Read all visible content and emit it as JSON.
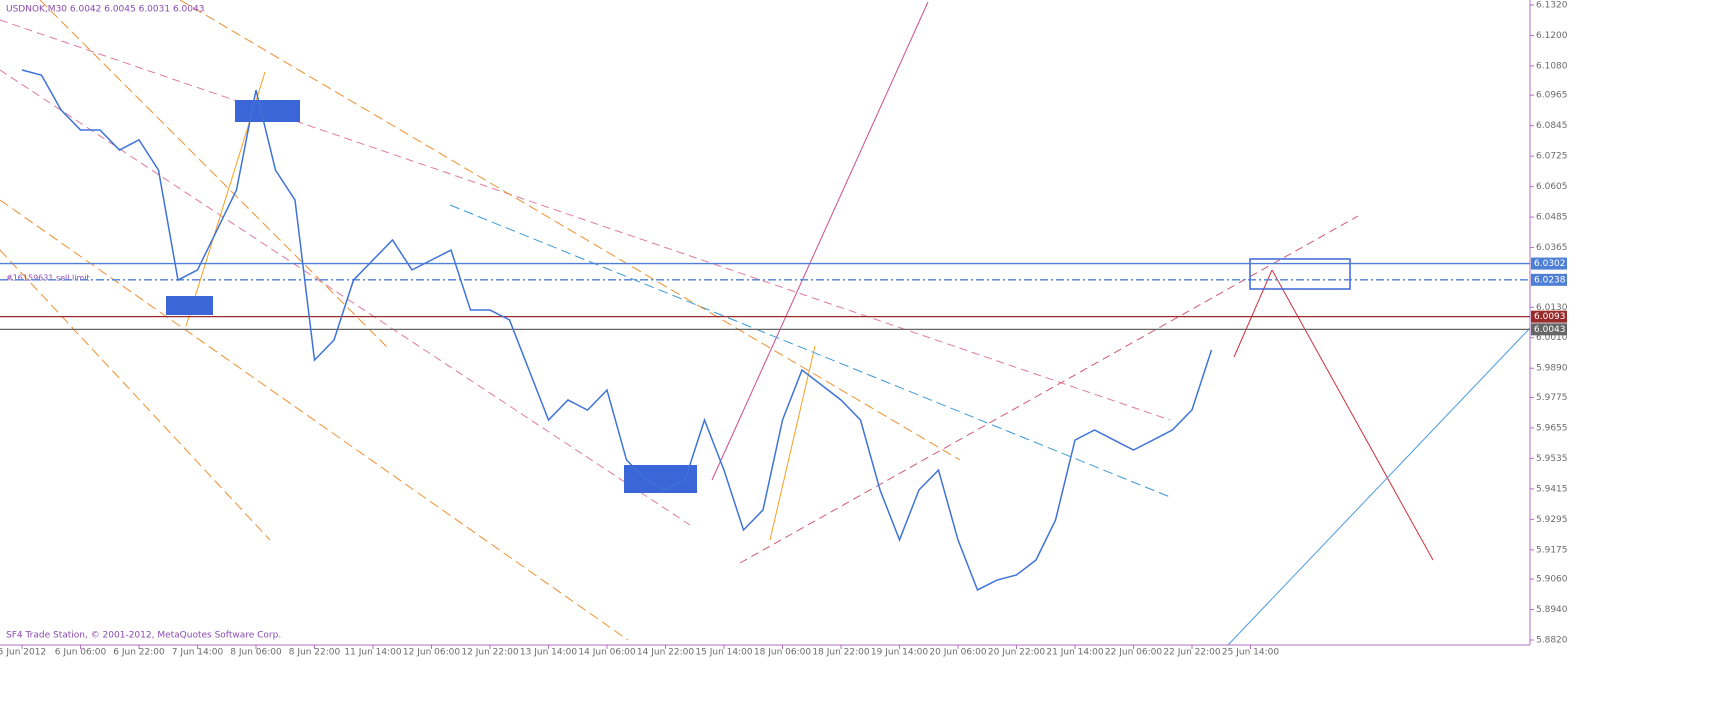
{
  "chart_data": {
    "type": "line",
    "title": "USDNOK,M30  6.0042 6.0045 6.0031 6.0043",
    "footer": "SF4 Trade Station, © 2001-2012, MetaQuotes Software Corp.",
    "annotation": "#16159631 sell limit",
    "categories": [
      "5 Jun 2012",
      null,
      null,
      "6 Jun 06:00",
      null,
      null,
      "6 Jun 22:00",
      null,
      null,
      "7 Jun 14:00",
      null,
      null,
      "8 Jun 06:00",
      null,
      null,
      "8 Jun 22:00",
      null,
      null,
      "11 Jun 14:00",
      null,
      null,
      "12 Jun 06:00",
      null,
      null,
      "12 Jun 22:00",
      null,
      null,
      "13 Jun 14:00",
      null,
      null,
      "14 Jun 06:00",
      null,
      null,
      "14 Jun 22:00",
      null,
      null,
      "15 Jun 14:00",
      null,
      null,
      "18 Jun 06:00",
      null,
      null,
      "18 Jun 22:00",
      null,
      null,
      "19 Jun 14:00",
      null,
      null,
      "20 Jun 06:00",
      null,
      null,
      "20 Jun 22:00",
      null,
      null,
      "21 Jun 14:00",
      null,
      null,
      "22 Jun 06:00",
      null,
      null,
      "22 Jun 22:00",
      null,
      null,
      "25 Jun 14:00"
    ],
    "series": [
      {
        "name": "USDNOK,M30",
        "color": "#3f73d9",
        "values": [
          6.1064,
          6.1044,
          6.0907,
          6.0828,
          6.0828,
          6.0749,
          6.0789,
          6.067,
          6.0237,
          6.0277,
          6.0434,
          6.0592,
          6.0985,
          6.067,
          6.0552,
          5.9922,
          6.0001,
          6.0237,
          6.0316,
          6.0395,
          6.0277,
          6.0316,
          6.0355,
          6.0119,
          6.0119,
          6.008,
          5.9883,
          5.9686,
          5.9765,
          5.9725,
          5.9804,
          5.9529,
          5.945,
          5.9411,
          5.945,
          5.9686,
          5.9489,
          5.9253,
          5.9332,
          5.9686,
          5.9883,
          5.9824,
          5.9765,
          5.9686,
          5.9411,
          5.9214,
          5.9411,
          5.9489,
          5.9214,
          5.9017,
          5.9056,
          5.9076,
          5.9135,
          5.9292,
          5.9607,
          5.9647,
          5.9607,
          5.9568,
          5.9607,
          5.9647,
          5.9726,
          5.9962,
          null,
          null
        ]
      }
    ],
    "ylim": [
      5.882,
      6.132
    ],
    "yticks": [
      {
        "value": 6.132,
        "label": "6.1320"
      },
      {
        "value": 6.12,
        "label": "6.1200"
      },
      {
        "value": 6.108,
        "label": "6.1080"
      },
      6.0965,
      6.0845,
      6.0725,
      6.0605,
      6.0485,
      6.0365,
      {
        "value": 6.013,
        "label": "6.0130"
      },
      {
        "value": 6.001,
        "label": "6.0010"
      },
      {
        "value": 5.989,
        "label": "5.9890"
      },
      5.9775,
      5.9655,
      5.9535,
      5.9415,
      5.9295,
      5.9175,
      {
        "value": 5.906,
        "label": "5.9060"
      },
      {
        "value": 5.894,
        "label": "5.8940"
      },
      {
        "value": 5.882,
        "label": "5.8820"
      }
    ],
    "levels": [
      {
        "value": 6.0302,
        "color": "#4d7fd6"
      },
      {
        "value": 6.0238,
        "color": "#4d7fd6"
      },
      {
        "value": 6.0093,
        "color": "#9a2b2b"
      },
      {
        "value": 6.0043,
        "color": "#666666"
      }
    ],
    "grid": false
  }
}
